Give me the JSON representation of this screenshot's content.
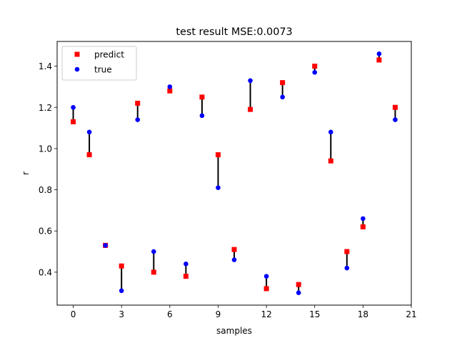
{
  "chart_data": {
    "type": "scatter",
    "title": "test result MSE:0.0073",
    "xlabel": "samples",
    "ylabel": "r",
    "xlim": [
      -1,
      21
    ],
    "ylim": [
      0.24,
      1.52
    ],
    "xticks": [
      0,
      3,
      6,
      9,
      12,
      15,
      18,
      21
    ],
    "yticks": [
      0.4,
      0.6,
      0.8,
      1.0,
      1.2,
      1.4
    ],
    "ytick_labels": [
      "0.4",
      "0.6",
      "0.8",
      "1.0",
      "1.2",
      "1.4"
    ],
    "grid": false,
    "legend_position": "top-left",
    "x": [
      0,
      1,
      2,
      3,
      4,
      5,
      6,
      7,
      8,
      9,
      10,
      11,
      12,
      13,
      14,
      15,
      16,
      17,
      18,
      19,
      20
    ],
    "series": [
      {
        "name": "predict",
        "marker": "square",
        "color": "#ff0000",
        "values": [
          1.13,
          0.97,
          0.53,
          0.43,
          1.22,
          0.4,
          1.28,
          0.38,
          1.25,
          0.97,
          0.51,
          1.19,
          0.32,
          1.32,
          0.34,
          1.4,
          0.94,
          0.5,
          0.62,
          1.43,
          1.2
        ]
      },
      {
        "name": "true",
        "marker": "circle",
        "color": "#0000ff",
        "values": [
          1.2,
          1.08,
          0.53,
          0.31,
          1.14,
          0.5,
          1.3,
          0.44,
          1.16,
          0.81,
          0.46,
          1.33,
          0.38,
          1.25,
          0.3,
          1.37,
          1.08,
          0.42,
          0.66,
          1.46,
          1.14
        ]
      }
    ],
    "error_line_color": "#000000"
  }
}
